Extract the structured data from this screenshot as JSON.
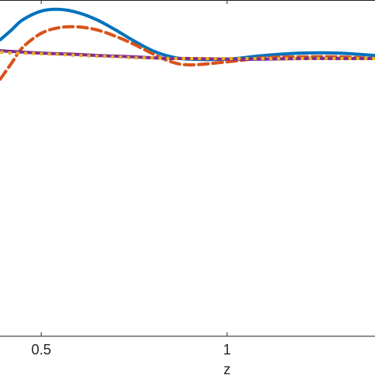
{
  "chart_data": {
    "type": "line",
    "x": [
      0.39,
      0.42,
      0.45,
      0.5,
      0.55,
      0.6,
      0.65,
      0.7,
      0.75,
      0.8,
      0.85,
      0.9,
      1.0,
      1.1,
      1.2,
      1.3,
      1.398
    ],
    "series": [
      {
        "color": "#0072bd",
        "style": "solid",
        "values": [
          0.882,
          0.911,
          0.941,
          0.967,
          0.972,
          0.962,
          0.941,
          0.911,
          0.878,
          0.849,
          0.831,
          0.824,
          0.824,
          0.835,
          0.842,
          0.842,
          0.835
        ]
      },
      {
        "color": "#d95319",
        "style": "dashed",
        "values": [
          0.765,
          0.812,
          0.859,
          0.901,
          0.918,
          0.92,
          0.911,
          0.892,
          0.868,
          0.84,
          0.816,
          0.807,
          0.816,
          0.828,
          0.831,
          0.831,
          0.826
        ]
      },
      {
        "color": "#7e2f8e",
        "style": "solid",
        "values": [
          0.849,
          0.847,
          0.845,
          0.842,
          0.84,
          0.838,
          0.835,
          0.833,
          0.831,
          0.828,
          0.826,
          0.826,
          0.824,
          0.824,
          0.826,
          0.826,
          0.826
        ]
      },
      {
        "color": "#edb120",
        "style": "dotted",
        "values": [
          0.845,
          0.842,
          0.842,
          0.84,
          0.838,
          0.835,
          0.833,
          0.831,
          0.828,
          0.828,
          0.826,
          0.826,
          0.826,
          0.826,
          0.826,
          0.826,
          0.826
        ]
      }
    ],
    "xlabel": "z",
    "xlim": [
      0.389,
      1.398
    ],
    "ylim": [
      0,
      1
    ],
    "xticks": [
      0.5,
      1
    ]
  }
}
